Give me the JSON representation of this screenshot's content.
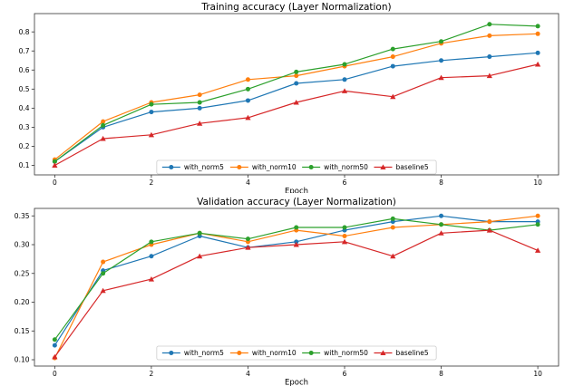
{
  "figure": {
    "background_color": "#ffffff",
    "text_color": "#000000",
    "spine_color": "#333333",
    "legend_border_color": "#cccccc"
  },
  "chart_data": [
    {
      "type": "line",
      "title": "Training accuracy (Layer Normalization)",
      "xlabel": "Epoch",
      "ylabel": "",
      "grid": false,
      "legend_position": "lower center",
      "x": [
        0,
        1,
        2,
        3,
        4,
        5,
        6,
        7,
        8,
        9,
        10
      ],
      "xlim": [
        -0.42,
        10.43
      ],
      "ylim": [
        0.05,
        0.896
      ],
      "xticks": {
        "values": [
          0,
          2,
          4,
          6,
          8,
          10
        ],
        "labels": [
          "0",
          "2",
          "4",
          "6",
          "8",
          "10"
        ]
      },
      "yticks": {
        "values": [
          0.1,
          0.2,
          0.3,
          0.4,
          0.5,
          0.6,
          0.7,
          0.8
        ],
        "labels": [
          "0.1",
          "0.2",
          "0.3",
          "0.4",
          "0.5",
          "0.6",
          "0.7",
          "0.8"
        ]
      },
      "series": [
        {
          "name": "with_norm5",
          "color": "#1f77b4",
          "marker": "circle",
          "values": [
            0.12,
            0.3,
            0.38,
            0.4,
            0.44,
            0.53,
            0.55,
            0.62,
            0.65,
            0.67,
            0.69
          ]
        },
        {
          "name": "with_norm10",
          "color": "#ff7f0e",
          "marker": "circle",
          "values": [
            0.13,
            0.33,
            0.43,
            0.47,
            0.55,
            0.57,
            0.62,
            0.67,
            0.74,
            0.78,
            0.79
          ]
        },
        {
          "name": "with_norm50",
          "color": "#2ca02c",
          "marker": "circle",
          "values": [
            0.12,
            0.31,
            0.42,
            0.43,
            0.5,
            0.59,
            0.63,
            0.71,
            0.75,
            0.84,
            0.83
          ]
        },
        {
          "name": "baseline5",
          "color": "#d62728",
          "marker": "triangle",
          "values": [
            0.1,
            0.24,
            0.26,
            0.32,
            0.35,
            0.43,
            0.49,
            0.46,
            0.56,
            0.57,
            0.63
          ]
        }
      ]
    },
    {
      "type": "line",
      "title": "Validation accuracy (Layer Normalization)",
      "xlabel": "Epoch",
      "ylabel": "",
      "grid": false,
      "legend_position": "lower center",
      "x": [
        0,
        1,
        2,
        3,
        4,
        5,
        6,
        7,
        8,
        9,
        10
      ],
      "xlim": [
        -0.42,
        10.43
      ],
      "ylim": [
        0.089,
        0.363
      ],
      "xticks": {
        "values": [
          0,
          2,
          4,
          6,
          8,
          10
        ],
        "labels": [
          "0",
          "2",
          "4",
          "6",
          "8",
          "10"
        ]
      },
      "yticks": {
        "values": [
          0.1,
          0.15,
          0.2,
          0.25,
          0.3,
          0.35
        ],
        "labels": [
          "0.10",
          "0.15",
          "0.20",
          "0.25",
          "0.30",
          "0.35"
        ]
      },
      "series": [
        {
          "name": "with_norm5",
          "color": "#1f77b4",
          "marker": "circle",
          "values": [
            0.125,
            0.255,
            0.28,
            0.315,
            0.295,
            0.305,
            0.325,
            0.34,
            0.35,
            0.34,
            0.34
          ]
        },
        {
          "name": "with_norm10",
          "color": "#ff7f0e",
          "marker": "circle",
          "values": [
            0.103,
            0.27,
            0.3,
            0.32,
            0.305,
            0.325,
            0.315,
            0.33,
            0.335,
            0.34,
            0.35
          ]
        },
        {
          "name": "with_norm50",
          "color": "#2ca02c",
          "marker": "circle",
          "values": [
            0.135,
            0.25,
            0.305,
            0.32,
            0.31,
            0.33,
            0.33,
            0.345,
            0.335,
            0.325,
            0.335
          ]
        },
        {
          "name": "baseline5",
          "color": "#d62728",
          "marker": "triangle",
          "values": [
            0.105,
            0.22,
            0.24,
            0.28,
            0.295,
            0.3,
            0.305,
            0.28,
            0.32,
            0.325,
            0.29
          ]
        }
      ]
    }
  ]
}
